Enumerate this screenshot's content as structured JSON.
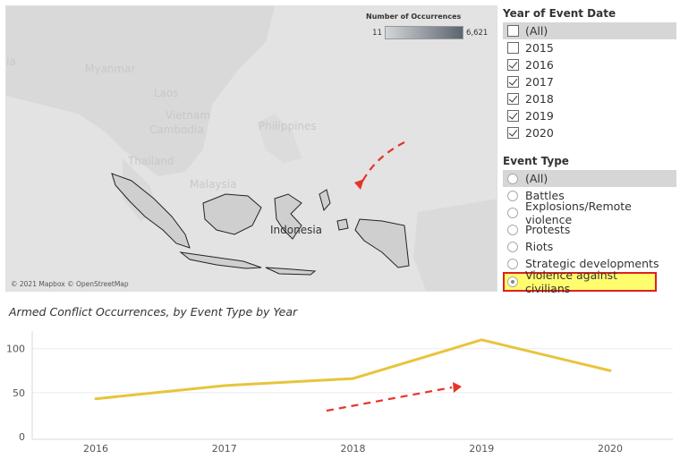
{
  "map": {
    "legend": {
      "title": "Number of Occurrences",
      "min": "11",
      "max": "6,621"
    },
    "country_labels": [
      "Myanmar",
      "Laos",
      "Vietnam",
      "Cambodia",
      "Thailand",
      "Malaysia",
      "Philippines",
      "Indonesia",
      "ia"
    ],
    "highlight_label": "Indonesia",
    "attribution": "© 2021 Mapbox © OpenStreetMap"
  },
  "filters": {
    "year": {
      "title": "Year of Event Date",
      "items": [
        {
          "label": "(All)",
          "checked": false
        },
        {
          "label": "2015",
          "checked": false
        },
        {
          "label": "2016",
          "checked": true
        },
        {
          "label": "2017",
          "checked": true
        },
        {
          "label": "2018",
          "checked": true
        },
        {
          "label": "2019",
          "checked": true
        },
        {
          "label": "2020",
          "checked": true
        }
      ]
    },
    "event_type": {
      "title": "Event Type",
      "items": [
        {
          "label": "(All)",
          "selected": false
        },
        {
          "label": "Battles",
          "selected": false
        },
        {
          "label": "Explosions/Remote violence",
          "selected": false
        },
        {
          "label": "Protests",
          "selected": false
        },
        {
          "label": "Riots",
          "selected": false
        },
        {
          "label": "Strategic developments",
          "selected": false
        },
        {
          "label": "Violence against civilians",
          "selected": true
        }
      ]
    }
  },
  "chart_title": "Armed Conflict Occurrences, by Event Type by Year",
  "chart_data": {
    "type": "line",
    "categories": [
      "2016",
      "2017",
      "2018",
      "2019",
      "2020"
    ],
    "series": [
      {
        "values": [
          43,
          58,
          66,
          110,
          75
        ],
        "color": "#e8c43c"
      }
    ],
    "ylim": [
      0,
      120
    ],
    "yticks": [
      0,
      50,
      100
    ],
    "grid": true
  },
  "colors": {
    "accent_line": "#e8c43c",
    "highlight_fill": "#fffc6e",
    "highlight_border": "#e02020",
    "arrow": "#e8332a",
    "map_region": "#cfcfcf"
  }
}
